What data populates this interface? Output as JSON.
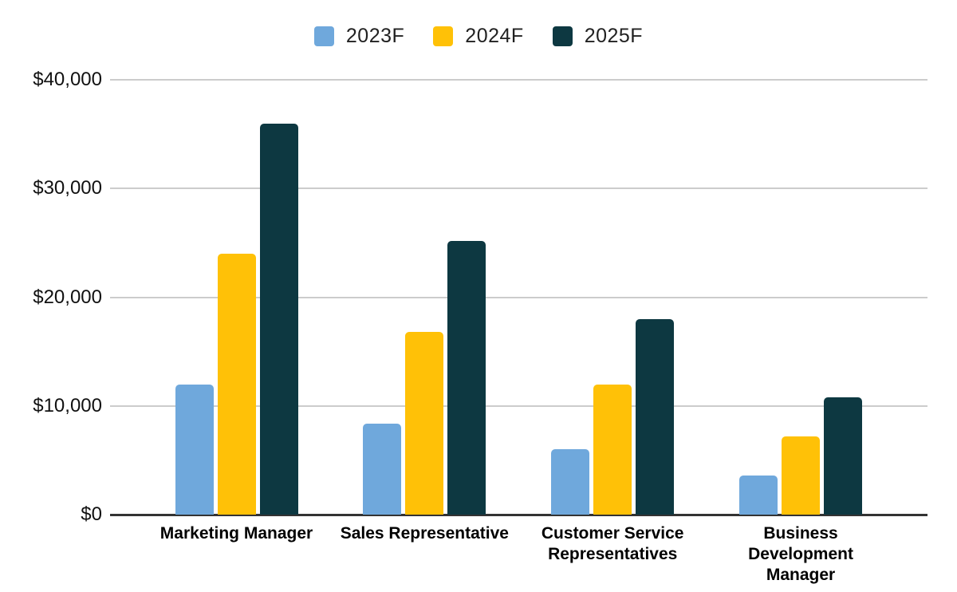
{
  "chart_data": {
    "type": "bar",
    "title": "",
    "xlabel": "",
    "ylabel": "",
    "categories": [
      "Marketing Manager",
      "Sales Representative",
      "Customer Service Representatives",
      "Business Development Manager"
    ],
    "series": [
      {
        "name": "2023F",
        "color": "#6FA8DC",
        "values": [
          12000,
          8400,
          6000,
          3600
        ]
      },
      {
        "name": "2024F",
        "color": "#FFC107",
        "values": [
          24000,
          16800,
          12000,
          7200
        ]
      },
      {
        "name": "2025F",
        "color": "#0D3841",
        "values": [
          36000,
          25200,
          18000,
          10800
        ]
      }
    ],
    "ylim": [
      0,
      40000
    ],
    "yticks": [
      0,
      10000,
      20000,
      30000,
      40000
    ],
    "ytick_labels": [
      "$0",
      "$10,000",
      "$20,000",
      "$30,000",
      "$40,000"
    ],
    "grid": true,
    "legend_position": "top"
  },
  "colors": {
    "background": "#FFFFFF",
    "gridline": "#CCCCCC",
    "axis_line": "#333333",
    "tick_label_text": "#111111",
    "category_label_text": "#000000",
    "legend_text": "#212121"
  }
}
